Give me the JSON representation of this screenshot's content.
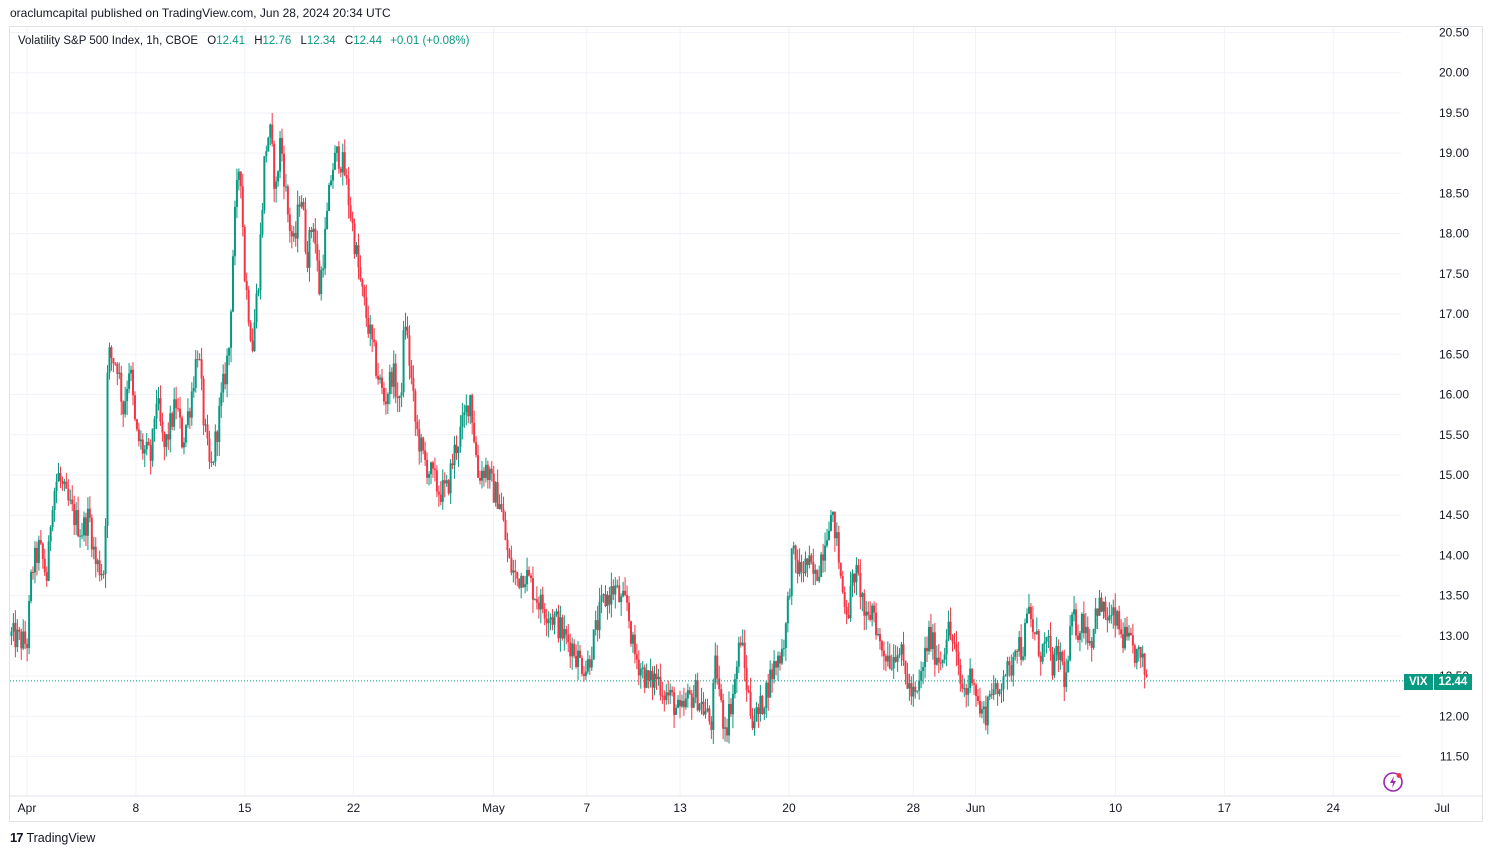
{
  "header": {
    "text": "oraclumcapital published on TradingView.com, Jun 28, 2024 20:34 UTC"
  },
  "legend": {
    "title": "Volatility S&P 500 Index, 1h, CBOE",
    "o_label": "O",
    "o_value": "12.41",
    "h_label": "H",
    "h_value": "12.76",
    "l_label": "L",
    "l_value": "12.34",
    "c_label": "C",
    "c_value": "12.44",
    "change": "+0.01 (+0.08%)"
  },
  "price_tag": {
    "symbol": "VIX",
    "value": "12.44"
  },
  "footer": {
    "brand": "TradingView",
    "logo_icon": "tradingview-logo-icon"
  },
  "colors": {
    "up": "#089981",
    "down": "#f23645",
    "grid": "#f0f3fa",
    "last_price_line": "#089981"
  },
  "chart_data": {
    "type": "candlestick",
    "symbol": "VIX",
    "interval": "1h",
    "y_range": [
      11.25,
      20.75
    ],
    "y_ticks": [
      11.5,
      12.0,
      12.5,
      13.0,
      13.5,
      14.0,
      14.5,
      15.0,
      15.5,
      16.0,
      16.5,
      17.0,
      17.5,
      18.0,
      18.5,
      19.0,
      19.5,
      20.0,
      20.5
    ],
    "x_ticks": [
      {
        "label": "Apr",
        "day": 0
      },
      {
        "label": "8",
        "day": 7
      },
      {
        "label": "15",
        "day": 14
      },
      {
        "label": "22",
        "day": 21
      },
      {
        "label": "May",
        "day": 30
      },
      {
        "label": "7",
        "day": 36
      },
      {
        "label": "13",
        "day": 42
      },
      {
        "label": "20",
        "day": 49
      },
      {
        "label": "28",
        "day": 57
      },
      {
        "label": "Jun",
        "day": 61
      },
      {
        "label": "10",
        "day": 70
      },
      {
        "label": "17",
        "day": 77
      },
      {
        "label": "24",
        "day": 84
      },
      {
        "label": "Jul",
        "day": 91
      }
    ],
    "last_price": 12.44,
    "close_path": [
      [
        -1,
        13.0
      ],
      [
        0,
        12.9
      ],
      [
        0.3,
        13.8
      ],
      [
        0.8,
        14.1
      ],
      [
        1.3,
        13.7
      ],
      [
        1.6,
        14.7
      ],
      [
        2.0,
        15.0
      ],
      [
        2.5,
        14.7
      ],
      [
        3.0,
        14.5
      ],
      [
        3.5,
        14.3
      ],
      [
        4.0,
        14.5
      ],
      [
        4.4,
        13.9
      ],
      [
        5.0,
        13.8
      ],
      [
        5.2,
        16.5
      ],
      [
        5.8,
        16.4
      ],
      [
        6.2,
        15.8
      ],
      [
        6.6,
        16.4
      ],
      [
        7.0,
        15.5
      ],
      [
        7.5,
        15.3
      ],
      [
        8.0,
        15.2
      ],
      [
        8.3,
        16.0
      ],
      [
        8.8,
        15.3
      ],
      [
        9.2,
        15.6
      ],
      [
        9.6,
        15.9
      ],
      [
        10.0,
        15.4
      ],
      [
        10.5,
        15.9
      ],
      [
        11.0,
        16.6
      ],
      [
        11.4,
        15.6
      ],
      [
        11.8,
        15.0
      ],
      [
        13.0,
        16.6
      ],
      [
        13.3,
        18.0
      ],
      [
        13.7,
        19.0
      ],
      [
        14.0,
        17.5
      ],
      [
        14.5,
        16.6
      ],
      [
        14.9,
        17.5
      ],
      [
        15.3,
        19.0
      ],
      [
        15.6,
        19.3
      ],
      [
        16.0,
        18.5
      ],
      [
        16.3,
        19.2
      ],
      [
        16.8,
        18.2
      ],
      [
        17.2,
        17.8
      ],
      [
        17.6,
        18.6
      ],
      [
        18.0,
        17.7
      ],
      [
        18.4,
        18.2
      ],
      [
        18.8,
        17.3
      ],
      [
        19.2,
        18.0
      ],
      [
        19.6,
        18.8
      ],
      [
        20.0,
        19.0
      ],
      [
        20.4,
        18.8
      ],
      [
        21.0,
        18.0
      ],
      [
        21.5,
        17.3
      ],
      [
        22.0,
        16.8
      ],
      [
        22.5,
        16.3
      ],
      [
        23.0,
        15.9
      ],
      [
        23.5,
        16.3
      ],
      [
        24.0,
        15.8
      ],
      [
        24.3,
        17.0
      ],
      [
        24.7,
        16.2
      ],
      [
        25.0,
        15.6
      ],
      [
        25.5,
        15.2
      ],
      [
        26.0,
        15.0
      ],
      [
        26.5,
        14.8
      ],
      [
        27.0,
        14.8
      ],
      [
        27.5,
        15.3
      ],
      [
        28.0,
        15.6
      ],
      [
        28.5,
        16.0
      ],
      [
        29.0,
        15.0
      ],
      [
        29.5,
        15.1
      ],
      [
        30.0,
        14.8
      ],
      [
        30.4,
        14.7
      ],
      [
        31.0,
        13.9
      ],
      [
        31.5,
        13.7
      ],
      [
        32.0,
        13.8
      ],
      [
        32.5,
        13.6
      ],
      [
        33.0,
        13.4
      ],
      [
        33.5,
        13.3
      ],
      [
        34.0,
        13.2
      ],
      [
        34.5,
        13.0
      ],
      [
        35.0,
        12.9
      ],
      [
        35.5,
        12.7
      ],
      [
        36.0,
        12.6
      ],
      [
        37.0,
        13.4
      ],
      [
        37.4,
        13.5
      ],
      [
        37.8,
        13.6
      ],
      [
        38.2,
        13.4
      ],
      [
        38.6,
        13.4
      ],
      [
        39.0,
        12.8
      ],
      [
        39.5,
        12.6
      ],
      [
        40.0,
        12.4
      ],
      [
        40.5,
        12.5
      ],
      [
        41.0,
        12.3
      ],
      [
        41.5,
        12.2
      ],
      [
        42.0,
        12.0
      ],
      [
        42.5,
        12.2
      ],
      [
        43.0,
        12.3
      ],
      [
        43.5,
        12.1
      ],
      [
        44.0,
        11.9
      ],
      [
        44.3,
        12.7
      ],
      [
        44.7,
        12.0
      ],
      [
        45.0,
        11.9
      ],
      [
        45.5,
        12.4
      ],
      [
        45.9,
        13.0
      ],
      [
        46.2,
        12.5
      ],
      [
        46.6,
        12.0
      ],
      [
        47.0,
        12.0
      ],
      [
        48.0,
        12.6
      ],
      [
        48.5,
        12.8
      ],
      [
        48.8,
        13.1
      ],
      [
        49.2,
        14.0
      ],
      [
        49.7,
        13.8
      ],
      [
        50.2,
        13.9
      ],
      [
        50.7,
        13.7
      ],
      [
        51.2,
        14.1
      ],
      [
        51.6,
        14.5
      ],
      [
        52.0,
        14.3
      ],
      [
        52.4,
        13.6
      ],
      [
        52.8,
        13.3
      ],
      [
        53.2,
        13.8
      ],
      [
        53.6,
        13.6
      ],
      [
        54.0,
        13.1
      ],
      [
        54.4,
        13.4
      ],
      [
        54.8,
        12.9
      ],
      [
        55.2,
        12.8
      ],
      [
        55.6,
        12.7
      ],
      [
        56.0,
        12.9
      ],
      [
        56.4,
        12.6
      ],
      [
        56.8,
        12.3
      ],
      [
        57.2,
        12.2
      ],
      [
        58.0,
        13.0
      ],
      [
        58.4,
        12.8
      ],
      [
        58.8,
        12.7
      ],
      [
        59.2,
        13.1
      ],
      [
        59.6,
        12.9
      ],
      [
        60.0,
        12.4
      ],
      [
        60.4,
        12.3
      ],
      [
        60.8,
        12.6
      ],
      [
        61.2,
        12.1
      ],
      [
        61.6,
        12.0
      ],
      [
        62.0,
        12.4
      ],
      [
        62.4,
        12.2
      ],
      [
        62.8,
        12.6
      ],
      [
        63.2,
        12.5
      ],
      [
        63.6,
        13.0
      ],
      [
        64.0,
        12.8
      ],
      [
        64.4,
        13.3
      ],
      [
        64.8,
        13.0
      ],
      [
        65.2,
        12.8
      ],
      [
        65.6,
        12.9
      ],
      [
        66.0,
        12.6
      ],
      [
        66.4,
        12.8
      ],
      [
        66.8,
        12.4
      ],
      [
        67.2,
        13.2
      ],
      [
        67.6,
        13.1
      ],
      [
        68.0,
        13.2
      ],
      [
        68.4,
        12.9
      ],
      [
        68.8,
        13.4
      ],
      [
        69.2,
        13.3
      ],
      [
        69.6,
        13.2
      ],
      [
        70.0,
        13.2
      ],
      [
        70.4,
        13.0
      ],
      [
        70.8,
        12.9
      ],
      [
        71.2,
        12.8
      ],
      [
        71.6,
        12.7
      ],
      [
        72.0,
        12.5
      ]
    ],
    "candle_count": 580
  }
}
